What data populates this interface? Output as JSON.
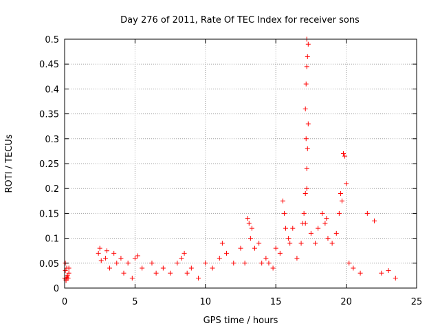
{
  "chart_data": {
    "type": "scatter",
    "title": "Day 276 of 2011, Rate Of TEC Index for receiver sons",
    "xlabel": "GPS time / hours",
    "ylabel": "ROTI / TECUs",
    "xlim": [
      0,
      25
    ],
    "ylim": [
      0,
      0.5
    ],
    "grid": true,
    "marker": "plus",
    "point_color": "#ff0000",
    "x_ticks": [
      "0",
      "5",
      "10",
      "15",
      "20",
      "25"
    ],
    "y_ticks": [
      "0",
      "0.05",
      "0.1",
      "0.15",
      "0.2",
      "0.25",
      "0.3",
      "0.35",
      "0.4",
      "0.45",
      "0.5"
    ],
    "series": [
      {
        "name": "ROTI",
        "x": [
          0.0,
          0.05,
          0.1,
          0.15,
          0.2,
          0.25,
          0.3,
          0.05,
          0.1,
          0.15,
          0.3,
          2.4,
          2.5,
          2.6,
          2.9,
          3.0,
          3.2,
          3.5,
          3.7,
          4.0,
          4.2,
          4.5,
          4.8,
          5.0,
          5.2,
          5.5,
          6.2,
          6.5,
          7.0,
          7.5,
          8.0,
          8.3,
          8.5,
          8.7,
          9.0,
          9.5,
          10.0,
          10.5,
          11.0,
          11.2,
          11.5,
          12.0,
          12.5,
          12.8,
          13.0,
          13.1,
          13.2,
          13.3,
          13.5,
          13.8,
          14.0,
          14.3,
          14.5,
          14.8,
          15.0,
          15.3,
          15.5,
          15.6,
          15.7,
          15.9,
          16.0,
          16.2,
          16.5,
          16.8,
          16.9,
          17.0,
          17.1,
          17.2,
          17.25,
          17.3,
          17.1,
          17.15,
          17.2,
          17.25,
          17.3,
          17.2,
          17.15,
          17.2,
          17.1,
          17.5,
          17.8,
          18.0,
          18.3,
          18.5,
          18.6,
          18.7,
          19.0,
          19.3,
          19.5,
          19.6,
          19.7,
          19.8,
          19.9,
          20.0,
          20.2,
          20.5,
          21.0,
          21.5,
          22.0,
          22.5,
          23.0,
          23.5
        ],
        "y": [
          0.02,
          0.05,
          0.015,
          0.04,
          0.025,
          0.02,
          0.03,
          0.035,
          0.018,
          0.022,
          0.04,
          0.07,
          0.08,
          0.055,
          0.06,
          0.075,
          0.04,
          0.07,
          0.05,
          0.06,
          0.03,
          0.05,
          0.02,
          0.06,
          0.065,
          0.04,
          0.05,
          0.03,
          0.04,
          0.03,
          0.05,
          0.06,
          0.07,
          0.03,
          0.04,
          0.02,
          0.05,
          0.04,
          0.06,
          0.09,
          0.07,
          0.05,
          0.08,
          0.05,
          0.14,
          0.13,
          0.1,
          0.12,
          0.08,
          0.09,
          0.05,
          0.06,
          0.05,
          0.04,
          0.08,
          0.07,
          0.175,
          0.15,
          0.12,
          0.1,
          0.09,
          0.12,
          0.06,
          0.09,
          0.13,
          0.15,
          0.19,
          0.24,
          0.28,
          0.33,
          0.36,
          0.41,
          0.445,
          0.465,
          0.49,
          0.5,
          0.3,
          0.2,
          0.13,
          0.11,
          0.09,
          0.12,
          0.15,
          0.13,
          0.14,
          0.1,
          0.09,
          0.11,
          0.15,
          0.19,
          0.175,
          0.27,
          0.265,
          0.21,
          0.05,
          0.04,
          0.03,
          0.15,
          0.135,
          0.03,
          0.035,
          0.02
        ]
      }
    ]
  }
}
